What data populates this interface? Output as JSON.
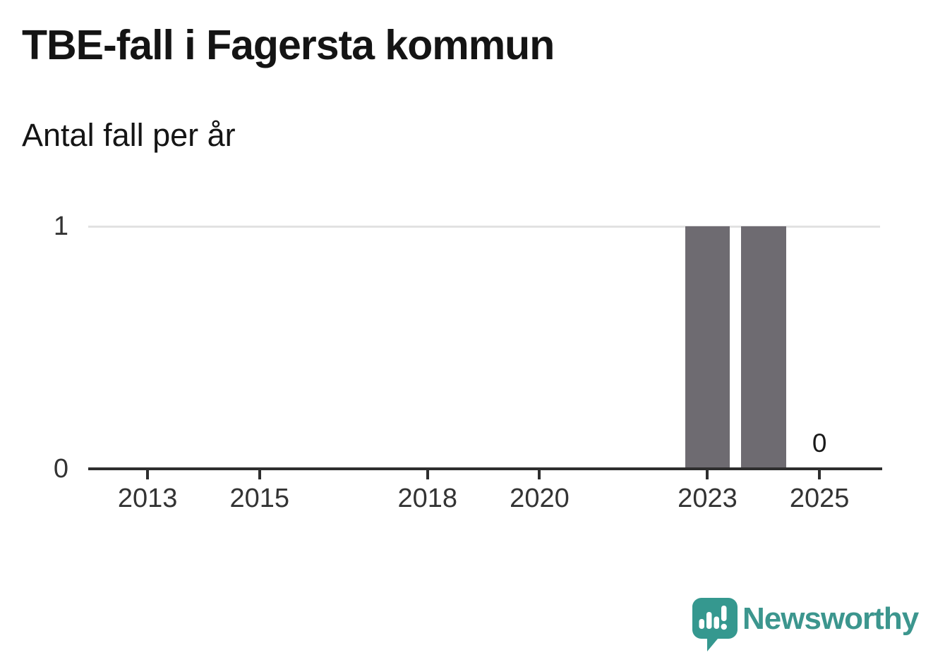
{
  "header": {
    "title": "TBE-fall i Fagersta kommun",
    "subtitle": "Antal fall per år"
  },
  "chart_data": {
    "type": "bar",
    "title": "TBE-fall i Fagersta kommun",
    "subtitle": "Antal fall per år",
    "xlabel": "",
    "ylabel": "Antal fall per år",
    "x": [
      2012,
      2013,
      2014,
      2015,
      2016,
      2017,
      2018,
      2019,
      2020,
      2021,
      2022,
      2023,
      2024,
      2025
    ],
    "values": [
      0,
      0,
      0,
      0,
      0,
      0,
      0,
      0,
      0,
      0,
      0,
      1,
      1,
      0
    ],
    "x_tick_years": [
      2013,
      2015,
      2018,
      2020,
      2023,
      2025
    ],
    "x_tick_labels": [
      "2013",
      "2015",
      "2018",
      "2020",
      "2023",
      "2025"
    ],
    "y_tick_values": [
      0,
      1
    ],
    "y_tick_labels": [
      "0",
      "1"
    ],
    "ylim": [
      0,
      1
    ],
    "xlim": [
      2011.94,
      2026.12
    ],
    "bar_width_years": 0.8,
    "grid": "horizontal-gridline-at-1-only",
    "legend": "none",
    "annotations": [
      {
        "x": 2025,
        "value": 0,
        "label": "0"
      }
    ],
    "colors": {
      "bar": "#6e6b71",
      "axis": "#2e2e2e",
      "gridline": "#e2e2e2",
      "tick_text": "#333333",
      "title_text": "#141414",
      "annotation_text": "#1a1a1a"
    }
  },
  "footer": {
    "brand": "Newsworthy",
    "brand_color": "#3c968e",
    "logo_icon": "newsworthy-speech-bubble-bar-chart-icon"
  }
}
